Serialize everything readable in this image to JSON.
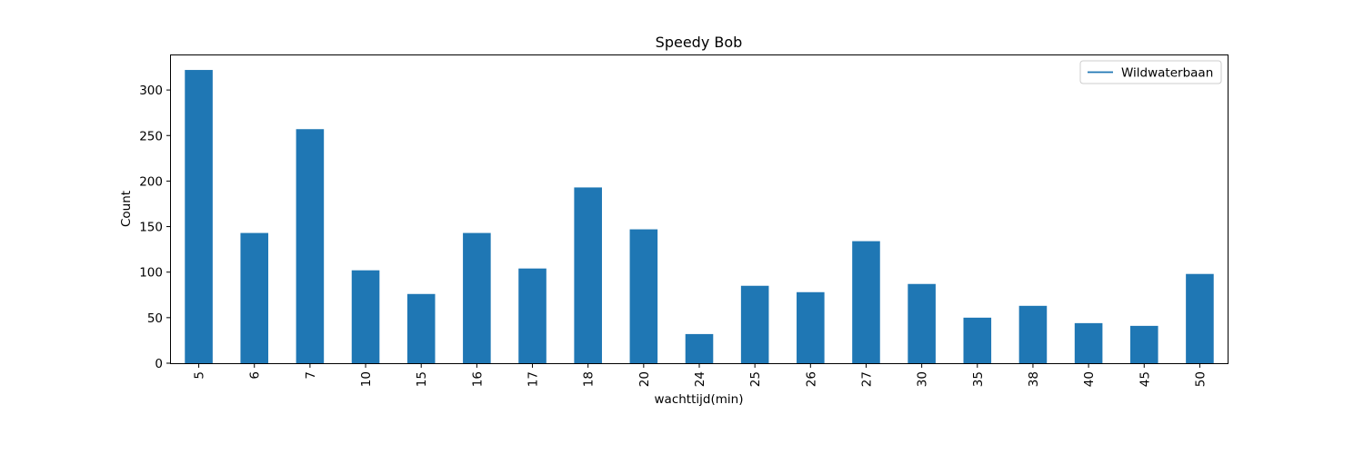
{
  "chart_data": {
    "type": "bar",
    "title": "Speedy Bob",
    "xlabel": "wachttijd(min)",
    "ylabel": "Count",
    "categories": [
      "5",
      "6",
      "7",
      "10",
      "15",
      "16",
      "17",
      "18",
      "20",
      "24",
      "25",
      "26",
      "27",
      "30",
      "35",
      "38",
      "40",
      "45",
      "50"
    ],
    "series": [
      {
        "name": "Wildwaterbaan",
        "values": [
          322,
          143,
          257,
          102,
          76,
          143,
          104,
          193,
          147,
          32,
          85,
          78,
          134,
          87,
          50,
          63,
          44,
          41,
          98
        ]
      }
    ],
    "ylim": [
      0,
      338
    ],
    "yticks": [
      0,
      50,
      100,
      150,
      200,
      250,
      300
    ],
    "legend": "top-right",
    "legend_marker": "line",
    "grid": false,
    "colors": {
      "bar": "#1f77b4",
      "axis": "#000000",
      "background": "#ffffff"
    }
  }
}
